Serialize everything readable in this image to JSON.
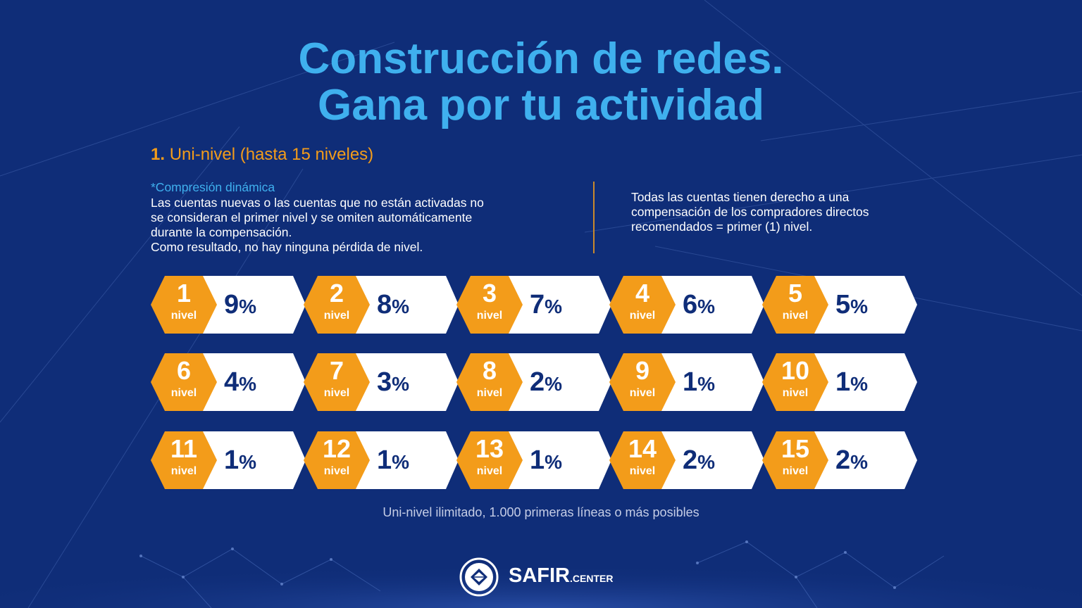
{
  "title": {
    "line1": "Construcción de redes.",
    "line2": "Gana por tu actividad"
  },
  "section": {
    "number": "1.",
    "label": "Uni-nivel (hasta 15 niveles)"
  },
  "compression": {
    "label": "*Compresión dinámica",
    "line1": "Las cuentas nuevas o las cuentas que no están activadas no",
    "line2": "se consideran el primer nivel y se omiten automáticamente",
    "line3": "durante la compensación.",
    "line4": "Como resultado, no hay ninguna pérdida de nivel."
  },
  "direct": {
    "line1": "Todas las cuentas tienen derecho a una",
    "line2": "compensación de los compradores directos",
    "line3": "recomendados = primer (1) nivel."
  },
  "level_word": "nivel",
  "percent_sign": "%",
  "levels": [
    {
      "level": "1",
      "value": "9"
    },
    {
      "level": "2",
      "value": "8"
    },
    {
      "level": "3",
      "value": "7"
    },
    {
      "level": "4",
      "value": "6"
    },
    {
      "level": "5",
      "value": "5"
    },
    {
      "level": "6",
      "value": "4"
    },
    {
      "level": "7",
      "value": "3"
    },
    {
      "level": "8",
      "value": "2"
    },
    {
      "level": "9",
      "value": "1"
    },
    {
      "level": "10",
      "value": "1"
    },
    {
      "level": "11",
      "value": "1"
    },
    {
      "level": "12",
      "value": "1"
    },
    {
      "level": "13",
      "value": "1"
    },
    {
      "level": "14",
      "value": "2"
    },
    {
      "level": "15",
      "value": "2"
    }
  ],
  "footnote": "Uni-nivel ilimitado, 1.000 primeras líneas o más posibles",
  "brand": {
    "name": "SAFIR",
    "suffix": ".CENTER"
  },
  "colors": {
    "background": "#0f2d78",
    "title": "#3fb0ee",
    "accent": "#f39c1a",
    "tile": "#ffffff"
  }
}
